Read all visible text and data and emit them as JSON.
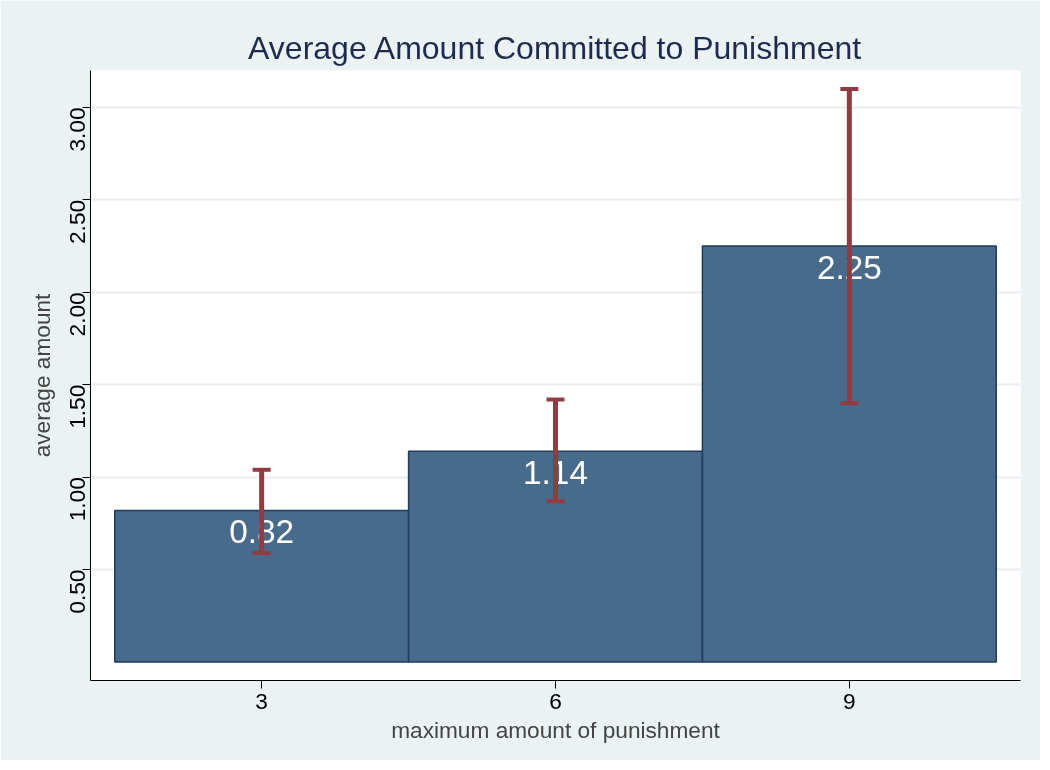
{
  "chart_data": {
    "type": "bar",
    "title": "Average Amount Committed to Punishment",
    "xlabel": "maximum amount of punishment",
    "ylabel": "average amount",
    "categories": [
      "3",
      "6",
      "9"
    ],
    "values": [
      0.82,
      1.14,
      2.25
    ],
    "errors": [
      [
        0.59,
        1.04
      ],
      [
        0.87,
        1.42
      ],
      [
        1.4,
        3.1
      ]
    ],
    "color": "#486a8b",
    "data_labels": true,
    "grid": "y",
    "ylim": [
      -0.1,
      3.2
    ],
    "yticks": [
      {
        "value": 0.5,
        "label": "0.50"
      },
      {
        "value": 1.0,
        "label": "1.00"
      },
      {
        "value": 1.5,
        "label": "1.50"
      },
      {
        "value": 2.0,
        "label": "2.00"
      },
      {
        "value": 2.5,
        "label": "2.50"
      },
      {
        "value": 3.0,
        "label": "3.00"
      }
    ]
  }
}
